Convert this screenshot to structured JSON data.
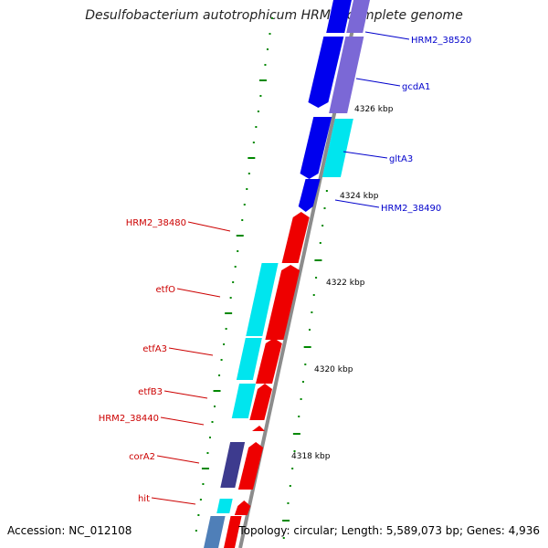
{
  "title": "Desulfobacterium autotrophicum HRM2, complete genome",
  "accession": "Accession: NC_012108",
  "topology": "Topology: circular; Length: 5,589,073 bp; Genes: 4,936",
  "colors": {
    "backbone": "#8c8c8c",
    "forward_label": "#0000cc",
    "reverse_label": "#cc0000",
    "tick": "#008800",
    "blue": "#0000ee",
    "slate": "#7b68d6",
    "cyan": "#00e5ee",
    "red": "#ee0000",
    "navy": "#3d3b8e"
  },
  "scale_labels": [
    "4326 kbp",
    "4324 kbp",
    "4322 kbp",
    "4320 kbp",
    "4318 kbp"
  ],
  "gene_labels": {
    "forward": [
      "HRM2_38520",
      "gcdA1",
      "gltA3",
      "HRM2_38490"
    ],
    "reverse": [
      "HRM2_38480",
      "etfO",
      "etfA3",
      "etfB3",
      "HRM2_38440",
      "corA2",
      "hit"
    ]
  }
}
